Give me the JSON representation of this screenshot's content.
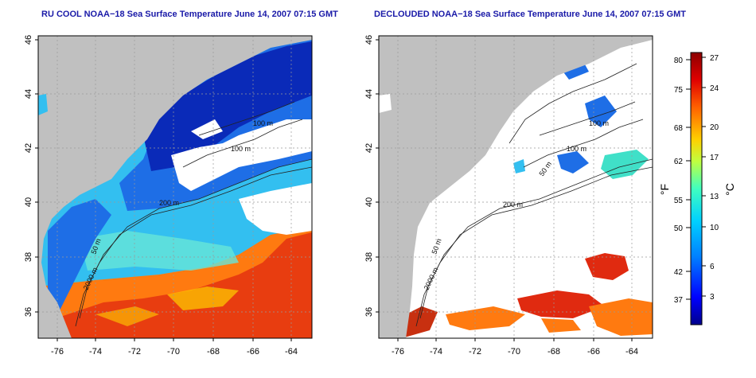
{
  "left_map": {
    "title": "RU COOL NOAA−18 Sea Surface Temperature June 14, 2007 07:15 GMT",
    "x_ticks": [
      "-76",
      "-74",
      "-72",
      "-70",
      "-68",
      "-66",
      "-64"
    ],
    "y_ticks": [
      "46",
      "44",
      "42",
      "40",
      "38",
      "36"
    ],
    "contour_labels": [
      "100 m",
      "100 m",
      "200 m",
      "50 m",
      "2000 m"
    ]
  },
  "right_map": {
    "title": "DECLOUDED NOAA−18 Sea Surface Temperature June 14, 2007 07:15 GMT",
    "x_ticks": [
      "-76",
      "-74",
      "-72",
      "-70",
      "-68",
      "-66",
      "-64"
    ],
    "y_ticks": [
      "46",
      "44",
      "42",
      "40",
      "38",
      "36"
    ],
    "contour_labels": [
      "100 m",
      "100 m",
      "50 m",
      "200 m",
      "50 m",
      "2000 m"
    ]
  },
  "colorbar": {
    "fahrenheit_label": "°F",
    "celsius_label": "°C",
    "fahrenheit_ticks": [
      "80",
      "75",
      "68",
      "62",
      "55",
      "50",
      "42",
      "37"
    ],
    "celsius_ticks": [
      "27",
      "24",
      "20",
      "17",
      "13",
      "10",
      "6",
      "3"
    ],
    "colors": [
      "#00008c",
      "#0000ff",
      "#0080ff",
      "#00d0ff",
      "#40ffc0",
      "#c0ff40",
      "#ffd000",
      "#ff6000",
      "#e00000",
      "#8c0000"
    ]
  },
  "colors": {
    "land": "#c0c0c0",
    "deep_cold": "#0a2ab8",
    "cold": "#1e6ee6",
    "cool": "#33bff0",
    "mild": "#66e6d8",
    "warm": "#ff7a10",
    "hot": "#e02a10",
    "cloud": "#ffffff",
    "title": "#1a1aa8"
  }
}
